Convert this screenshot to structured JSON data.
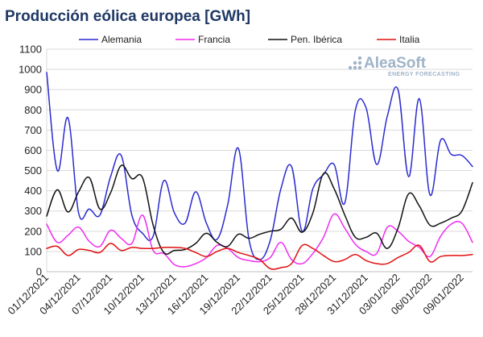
{
  "chart_data": {
    "type": "line",
    "title": "Producción eólica europea [GWh]",
    "xlabel": "",
    "ylabel": "",
    "ylim": [
      0,
      1100
    ],
    "yticks": [
      0,
      100,
      200,
      300,
      400,
      500,
      600,
      700,
      800,
      900,
      1000,
      1100
    ],
    "x": [
      "01/12/2021",
      "02/12/2021",
      "03/12/2021",
      "04/12/2021",
      "05/12/2021",
      "06/12/2021",
      "07/12/2021",
      "08/12/2021",
      "09/12/2021",
      "10/12/2021",
      "11/12/2021",
      "12/12/2021",
      "13/12/2021",
      "14/12/2021",
      "15/12/2021",
      "16/12/2021",
      "17/12/2021",
      "18/12/2021",
      "19/12/2021",
      "20/12/2021",
      "21/12/2021",
      "22/12/2021",
      "23/12/2021",
      "24/12/2021",
      "25/12/2021",
      "26/12/2021",
      "27/12/2021",
      "28/12/2021",
      "29/12/2021",
      "30/12/2021",
      "31/12/2021",
      "01/01/2022",
      "02/01/2022",
      "03/01/2022",
      "04/01/2022",
      "05/01/2022",
      "06/01/2022",
      "07/01/2022",
      "08/01/2022",
      "09/01/2022",
      "10/01/2022"
    ],
    "xtick_labels": [
      "01/12/2021",
      "04/12/2021",
      "07/12/2021",
      "10/12/2021",
      "13/12/2021",
      "16/12/2021",
      "19/12/2021",
      "22/12/2021",
      "25/12/2021",
      "28/12/2021",
      "31/12/2021",
      "03/01/2022",
      "06/01/2022",
      "09/01/2022"
    ],
    "grid": true,
    "legend_position": "top",
    "series": [
      {
        "name": "Alemania",
        "color": "#2b2bd0",
        "values": [
          985,
          500,
          760,
          290,
          310,
          280,
          470,
          575,
          280,
          190,
          175,
          450,
          290,
          240,
          395,
          240,
          160,
          330,
          610,
          160,
          60,
          155,
          410,
          520,
          200,
          410,
          480,
          530,
          340,
          800,
          810,
          530,
          770,
          900,
          470,
          855,
          380,
          650,
          580,
          575,
          520
        ]
      },
      {
        "name": "Francia",
        "color": "#f02df0",
        "values": [
          235,
          145,
          180,
          220,
          150,
          125,
          205,
          165,
          140,
          280,
          105,
          90,
          35,
          25,
          40,
          70,
          130,
          115,
          70,
          55,
          50,
          70,
          145,
          60,
          40,
          90,
          170,
          285,
          215,
          135,
          100,
          90,
          220,
          200,
          150,
          120,
          75,
          175,
          235,
          240,
          145
        ]
      },
      {
        "name": "Pen. Ibérica",
        "color": "#111111",
        "values": [
          275,
          405,
          295,
          395,
          465,
          310,
          390,
          525,
          460,
          465,
          230,
          95,
          105,
          110,
          140,
          190,
          145,
          125,
          185,
          165,
          185,
          200,
          210,
          265,
          195,
          290,
          485,
          410,
          280,
          170,
          170,
          190,
          115,
          215,
          385,
          325,
          230,
          240,
          265,
          300,
          440
        ]
      },
      {
        "name": "Italia",
        "color": "#e01010",
        "values": [
          115,
          125,
          80,
          110,
          105,
          95,
          140,
          105,
          120,
          115,
          115,
          120,
          120,
          115,
          95,
          75,
          100,
          115,
          95,
          80,
          60,
          15,
          20,
          40,
          130,
          115,
          80,
          50,
          60,
          85,
          55,
          40,
          40,
          70,
          95,
          130,
          50,
          75,
          80,
          80,
          85
        ]
      }
    ]
  },
  "logo": {
    "name": "AleaSoft",
    "tagline": "ENERGY FORECASTING",
    "color": "#9fb3c8"
  }
}
